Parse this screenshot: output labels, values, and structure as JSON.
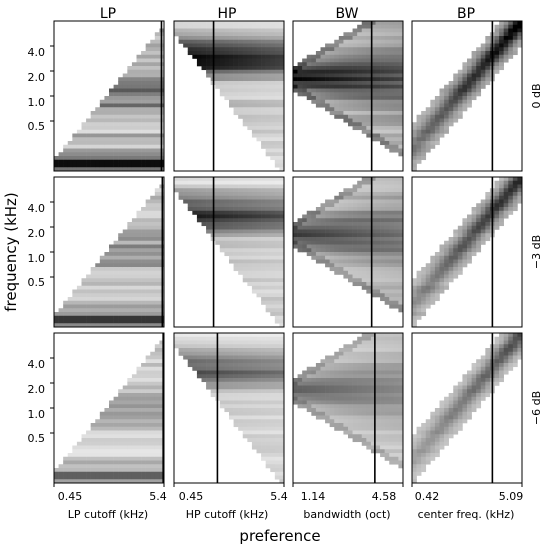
{
  "chart_data": {
    "type": "heatmap",
    "column_titles": [
      "LP",
      "HP",
      "BW",
      "BP"
    ],
    "row_labels": [
      "0 dB",
      "−3 dB",
      "−6 dB"
    ],
    "ylabel": "frequency (kHz)",
    "xlabel": "preference",
    "yticks": [
      "4.0",
      "2.0",
      "1.0",
      "0.5"
    ],
    "ytick_values": [
      4.0,
      2.0,
      1.0,
      0.5
    ],
    "yscale": "log",
    "columns": [
      {
        "xlabel": "LP cutoff (kHz)",
        "xticks": [
          "0.45",
          "5.4"
        ],
        "xtick_values": [
          0.45,
          5.4
        ],
        "xscale": "log",
        "marker": [
          5.1,
          5.2,
          5.3
        ]
      },
      {
        "xlabel": "HP cutoff (kHz)",
        "xticks": [
          "0.45",
          "5.4"
        ],
        "xtick_values": [
          0.45,
          5.4
        ],
        "xscale": "log",
        "marker": [
          1.1,
          1.1,
          1.2
        ]
      },
      {
        "xlabel": "bandwidth (oct)",
        "xticks": [
          "1.14",
          "4.58"
        ],
        "xtick_values": [
          1.14,
          4.58
        ],
        "xscale": "linear",
        "marker": [
          3.6,
          3.6,
          3.7
        ]
      },
      {
        "xlabel": "center freq. (kHz)",
        "xticks": [
          "0.42",
          "5.09"
        ],
        "xtick_values": [
          0.42,
          5.09
        ],
        "xscale": "log",
        "marker": [
          2.6,
          2.6,
          2.6
        ]
      }
    ]
  }
}
